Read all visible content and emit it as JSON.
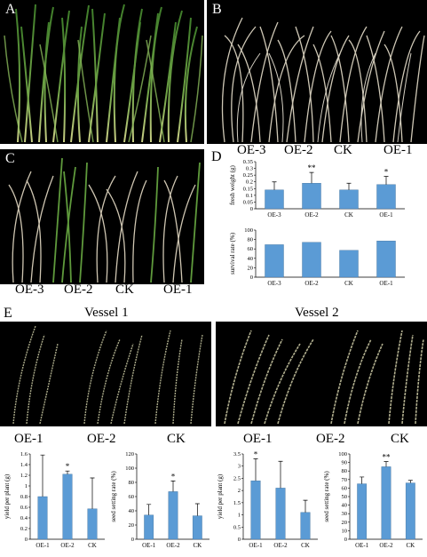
{
  "panels": {
    "A": {
      "letter": "A"
    },
    "B": {
      "letter": "B",
      "groups": [
        "OE-3",
        "OE-2",
        "CK",
        "OE-1"
      ]
    },
    "C": {
      "letter": "C",
      "groups": [
        "OE-3",
        "OE-2",
        "CK",
        "OE-1"
      ]
    },
    "D": {
      "letter": "D"
    },
    "E": {
      "letter": "E",
      "vessel1_title": "Vessel 1",
      "vessel2_title": "Vessel 2",
      "vessel1_groups": [
        "OE-1",
        "OE-2",
        "CK"
      ],
      "vessel2_groups": [
        "OE-1",
        "OE-2",
        "CK"
      ]
    }
  },
  "colors": {
    "bar": "#5b9bd5",
    "bar_edge": "#41719c"
  },
  "chart_data": [
    {
      "id": "D-fresh-weight",
      "type": "bar",
      "categories": [
        "OE-3",
        "OE-2",
        "CK",
        "OE-1"
      ],
      "values": [
        0.14,
        0.19,
        0.14,
        0.18
      ],
      "errors": [
        0.06,
        0.08,
        0.05,
        0.06
      ],
      "significance": [
        "",
        "**",
        "",
        "*"
      ],
      "ylabel": "fresh weight (g)",
      "xlabel": "",
      "ylim": [
        0,
        0.35
      ],
      "yticks": [
        "0",
        "0.05",
        "0.1",
        "0.15",
        "0.2",
        "0.25",
        "0.3",
        "0.35"
      ]
    },
    {
      "id": "D-survival-rate",
      "type": "bar",
      "categories": [
        "OE-3",
        "OE-2",
        "CK",
        "OE-1"
      ],
      "values": [
        69,
        74,
        57,
        77
      ],
      "errors": [
        0,
        0,
        0,
        0
      ],
      "significance": [
        "",
        "",
        "",
        ""
      ],
      "ylabel": "survival rate (%)",
      "xlabel": "",
      "ylim": [
        0,
        100
      ],
      "yticks": [
        "0",
        "20",
        "40",
        "60",
        "80",
        "100"
      ]
    },
    {
      "id": "E1-yield",
      "type": "bar",
      "categories": [
        "OE-1",
        "OE-2",
        "CK"
      ],
      "values": [
        0.8,
        1.22,
        0.57
      ],
      "errors": [
        0.78,
        0.06,
        0.58
      ],
      "significance": [
        "",
        "*",
        ""
      ],
      "ylabel": "yield per plant (g)",
      "xlabel": "",
      "ylim": [
        0,
        1.6
      ],
      "yticks": [
        "0",
        "0.2",
        "0.4",
        "0.6",
        "0.8",
        "1",
        "1.2",
        "1.4",
        "1.6"
      ]
    },
    {
      "id": "E1-seed-setting",
      "type": "bar",
      "categories": [
        "OE-1",
        "OE-2",
        "CK"
      ],
      "values": [
        34,
        67,
        33
      ],
      "errors": [
        15,
        15,
        17
      ],
      "significance": [
        "",
        "*",
        ""
      ],
      "ylabel": "seed setting rate (%)",
      "xlabel": "",
      "ylim": [
        0,
        120
      ],
      "yticks": [
        "0",
        "20",
        "40",
        "60",
        "80",
        "100",
        "120"
      ]
    },
    {
      "id": "E2-yield",
      "type": "bar",
      "categories": [
        "OE-1",
        "OE-2",
        "CK"
      ],
      "values": [
        2.4,
        2.1,
        1.1
      ],
      "errors": [
        0.9,
        1.1,
        0.5
      ],
      "significance": [
        "*",
        "",
        ""
      ],
      "ylabel": "yield per plant (g)",
      "xlabel": "",
      "ylim": [
        0,
        3.5
      ],
      "yticks": [
        "0",
        "0.5",
        "1",
        "1.5",
        "2",
        "2.5",
        "3",
        "3.5"
      ]
    },
    {
      "id": "E2-seed-setting",
      "type": "bar",
      "categories": [
        "OE-1",
        "OE-2",
        "CK"
      ],
      "values": [
        65,
        85,
        66
      ],
      "errors": [
        8,
        6,
        3
      ],
      "significance": [
        "",
        "**",
        ""
      ],
      "ylabel": "seed setting rate (%)",
      "xlabel": "",
      "ylim": [
        0,
        100
      ],
      "yticks": [
        "0",
        "10",
        "20",
        "30",
        "40",
        "50",
        "60",
        "70",
        "80",
        "90",
        "100"
      ]
    }
  ]
}
